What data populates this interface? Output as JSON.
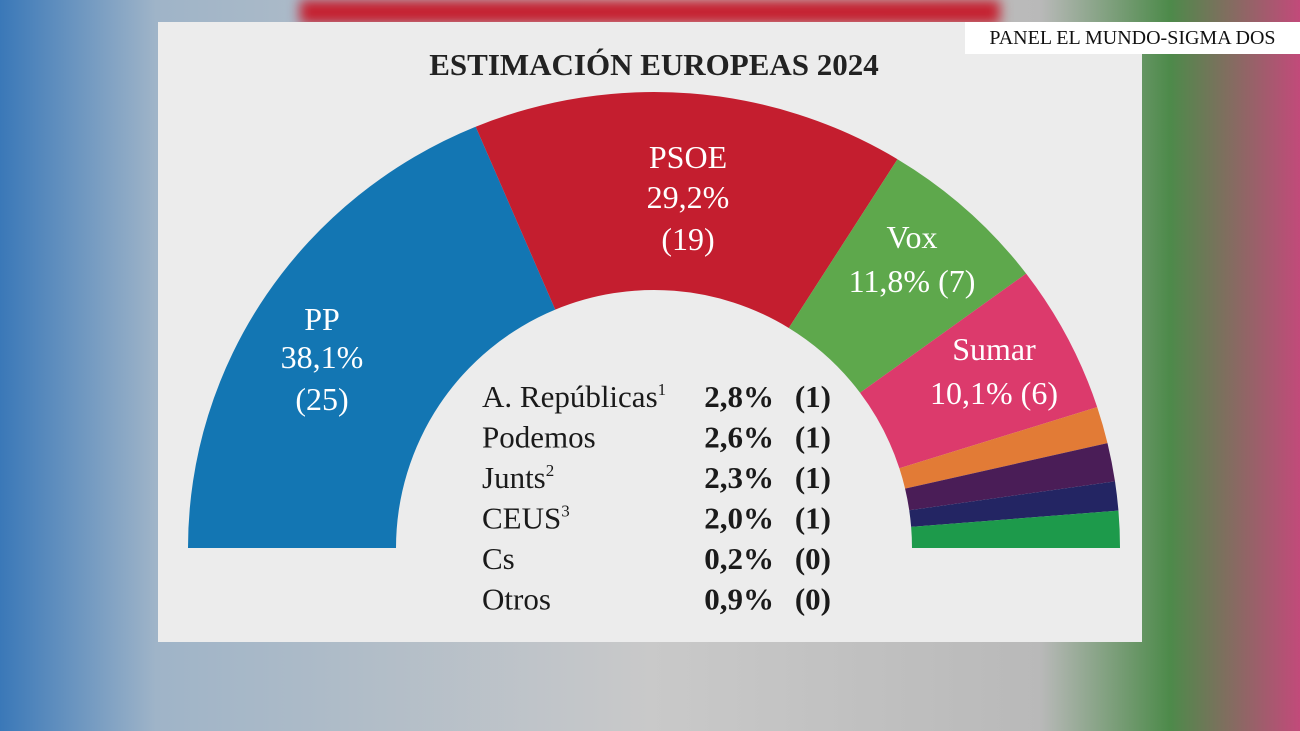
{
  "source_label": "PANEL EL MUNDO-SIGMA DOS",
  "chart_data": {
    "type": "pie",
    "subtype": "hemicycle",
    "title": "ESTIMACIÓN EUROPEAS 2024",
    "series": [
      {
        "name": "PP",
        "percent": "38,1%",
        "seats": "(25)",
        "value": 25,
        "color": "#1376b3"
      },
      {
        "name": "PSOE",
        "percent": "29,2%",
        "seats": "(19)",
        "value": 19,
        "color": "#c41e2f"
      },
      {
        "name": "Vox",
        "percent": "11,8%",
        "seats": "(7)",
        "value": 7,
        "color": "#5ea84c"
      },
      {
        "name": "Sumar",
        "percent": "10,1%",
        "seats": "(6)",
        "value": 6,
        "color": "#dc3a6c"
      },
      {
        "name": "A. Repúblicas",
        "footnote": "1",
        "percent": "2,8%",
        "seats": "(1)",
        "value": 1,
        "color": "#e27b36"
      },
      {
        "name": "Podemos",
        "percent": "2,6%",
        "seats": "(1)",
        "value": 1,
        "color": "#4a1d57"
      },
      {
        "name": "Junts",
        "footnote": "2",
        "percent": "2,3%",
        "seats": "(1)",
        "value": 1,
        "color": "#232563"
      },
      {
        "name": "CEUS",
        "footnote": "3",
        "percent": "2,0%",
        "seats": "(1)",
        "value": 1,
        "color": "#1d9a4b"
      },
      {
        "name": "Cs",
        "percent": "0,2%",
        "seats": "(0)",
        "value": 0
      },
      {
        "name": "Otros",
        "percent": "0,9%",
        "seats": "(0)",
        "value": 0
      }
    ]
  }
}
